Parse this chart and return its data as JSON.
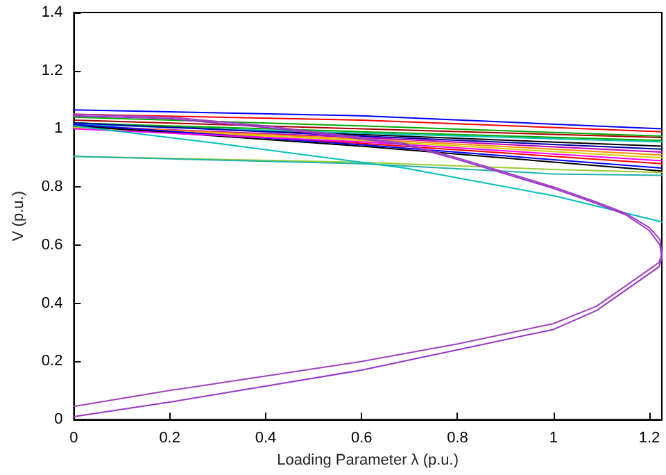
{
  "chart_data": {
    "type": "line",
    "xlabel": "Loading Parameter λ (p.u.)",
    "ylabel": "V (p.u.)",
    "xlim": [
      0,
      1.226
    ],
    "ylim": [
      0,
      1.4
    ],
    "xticks": [
      0,
      0.2,
      0.4,
      0.6,
      0.8,
      1,
      1.2
    ],
    "yticks": [
      0,
      0.2,
      0.4,
      0.6,
      0.8,
      1,
      1.2,
      1.4
    ],
    "grid": false,
    "marker": "none",
    "line_style": "solid",
    "series": [
      {
        "color": "#0000ff",
        "x": [
          0,
          0.6,
          1.226
        ],
        "values": [
          1.065,
          1.045,
          1.0
        ]
      },
      {
        "color": "#ff0000",
        "x": [
          0,
          0.6,
          1.226
        ],
        "values": [
          1.05,
          1.03,
          0.99
        ]
      },
      {
        "color": "#00aa00",
        "x": [
          0,
          0.6,
          1.226
        ],
        "values": [
          1.04,
          1.01,
          0.975
        ]
      },
      {
        "color": "#000000",
        "x": [
          0,
          0.6,
          1.226
        ],
        "values": [
          1.02,
          0.98,
          0.94
        ]
      },
      {
        "color": "#00bfbf",
        "x": [
          0,
          0.6,
          1.226
        ],
        "values": [
          1.015,
          0.985,
          0.955
        ]
      },
      {
        "color": "#bf00bf",
        "x": [
          0,
          0.6,
          1.226
        ],
        "values": [
          1.01,
          0.97,
          0.92
        ]
      },
      {
        "color": "#ff8c00",
        "x": [
          0,
          0.6,
          1.226
        ],
        "values": [
          1.01,
          0.965,
          0.91
        ]
      },
      {
        "color": "#d0d000",
        "x": [
          0,
          0.6,
          1.226
        ],
        "values": [
          1.005,
          0.96,
          0.9
        ]
      },
      {
        "color": "#ff0000",
        "x": [
          0,
          0.6,
          1.226
        ],
        "values": [
          1.01,
          0.95,
          0.88
        ]
      },
      {
        "color": "#0000ff",
        "x": [
          0,
          0.6,
          1.226
        ],
        "values": [
          1.015,
          0.945,
          0.865
        ]
      },
      {
        "color": "#000000",
        "x": [
          0,
          0.6,
          1.226
        ],
        "values": [
          1.01,
          0.94,
          0.855
        ]
      },
      {
        "color": "#00aa00",
        "x": [
          0,
          0.6,
          1.226
        ],
        "values": [
          1.02,
          0.99,
          0.96
        ]
      },
      {
        "color": "#ff00ff",
        "x": [
          0,
          0.6,
          1.226
        ],
        "values": [
          1.0,
          0.955,
          0.89
        ]
      },
      {
        "color": "#0000aa",
        "x": [
          0,
          0.6,
          1.226
        ],
        "values": [
          1.02,
          0.975,
          0.93
        ]
      },
      {
        "color": "#aa0000",
        "x": [
          0,
          0.6,
          1.226
        ],
        "values": [
          1.03,
          1.0,
          0.97
        ]
      },
      {
        "color": "#9acd32",
        "x": [
          0,
          0.6,
          1.0,
          1.226
        ],
        "values": [
          0.905,
          0.885,
          0.86,
          0.85
        ]
      },
      {
        "color": "#20b2aa",
        "x": [
          0,
          0.6,
          1.0,
          1.226
        ],
        "values": [
          0.905,
          0.88,
          0.845,
          0.84
        ]
      },
      {
        "color": "#00bfbf",
        "x": [
          0,
          0.3,
          0.69,
          1.0,
          1.226
        ],
        "values": [
          1.01,
          0.95,
          0.865,
          0.77,
          0.68
        ]
      },
      {
        "color": "#a040c0",
        "x": [
          0,
          0.2,
          0.4,
          0.6,
          0.69,
          0.8,
          1.0,
          1.087,
          1.15,
          1.2,
          1.222,
          1.226,
          1.22,
          1.09,
          1.0,
          0.8,
          0.6,
          0.4,
          0.2,
          0
        ],
        "values": [
          1.05,
          1.04,
          1.01,
          0.97,
          0.95,
          0.9,
          0.8,
          0.75,
          0.71,
          0.66,
          0.62,
          0.57,
          0.54,
          0.39,
          0.33,
          0.26,
          0.2,
          0.15,
          0.1,
          0.045
        ]
      },
      {
        "color": "#9933cc",
        "x": [
          0,
          0.2,
          0.4,
          0.6,
          0.69,
          0.8,
          1.0,
          1.087,
          1.15,
          1.2,
          1.222,
          1.226,
          1.22,
          1.09,
          1.0,
          0.8,
          0.6,
          0.4,
          0.2,
          0
        ],
        "values": [
          1.045,
          1.035,
          1.005,
          0.965,
          0.945,
          0.895,
          0.795,
          0.745,
          0.705,
          0.65,
          0.6,
          0.555,
          0.525,
          0.375,
          0.31,
          0.24,
          0.17,
          0.115,
          0.06,
          0.01
        ]
      }
    ]
  }
}
